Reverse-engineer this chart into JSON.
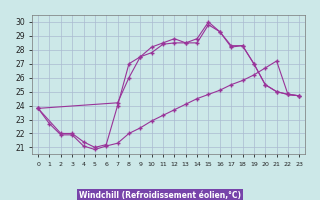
{
  "bg_color": "#cce8e8",
  "grid_color": "#aabbd0",
  "line_color": "#993399",
  "xlabel": "Windchill (Refroidissement éolien,°C)",
  "xlabel_bg": "#7744aa",
  "xlim": [
    -0.5,
    23.5
  ],
  "ylim": [
    20.5,
    30.5
  ],
  "xticks": [
    0,
    1,
    2,
    3,
    4,
    5,
    6,
    7,
    8,
    9,
    10,
    11,
    12,
    13,
    14,
    15,
    16,
    17,
    18,
    19,
    20,
    21,
    22,
    23
  ],
  "yticks": [
    21,
    22,
    23,
    24,
    25,
    26,
    27,
    28,
    29,
    30
  ],
  "line1_x": [
    0,
    1,
    2,
    3,
    4,
    5,
    6,
    7,
    8,
    9,
    10,
    11,
    12,
    13,
    14,
    15,
    16,
    17,
    18,
    19,
    20,
    21,
    22,
    23
  ],
  "line1_y": [
    23.8,
    22.7,
    21.9,
    21.9,
    21.1,
    20.85,
    21.1,
    21.3,
    22.0,
    22.4,
    22.9,
    23.3,
    23.7,
    24.1,
    24.5,
    24.8,
    25.1,
    25.5,
    25.8,
    26.2,
    26.7,
    27.2,
    24.8,
    24.7
  ],
  "line2_x": [
    0,
    2,
    3,
    4,
    5,
    6,
    7,
    8,
    9,
    10,
    11,
    12,
    13,
    14,
    15,
    16,
    17,
    18,
    19,
    20,
    21,
    22,
    23
  ],
  "line2_y": [
    23.8,
    22.0,
    22.0,
    21.4,
    21.0,
    21.2,
    24.0,
    27.0,
    27.5,
    27.8,
    28.4,
    28.5,
    28.5,
    28.5,
    29.8,
    29.3,
    28.3,
    28.3,
    27.0,
    25.5,
    25.0,
    24.8,
    24.7
  ],
  "line3_x": [
    0,
    7,
    8,
    9,
    10,
    11,
    12,
    13,
    14,
    15,
    16,
    17,
    18,
    19,
    20,
    21,
    22,
    23
  ],
  "line3_y": [
    23.8,
    24.2,
    26.0,
    27.5,
    28.2,
    28.5,
    28.8,
    28.5,
    28.8,
    30.0,
    29.3,
    28.2,
    28.3,
    27.0,
    25.5,
    25.0,
    24.8,
    24.7
  ]
}
